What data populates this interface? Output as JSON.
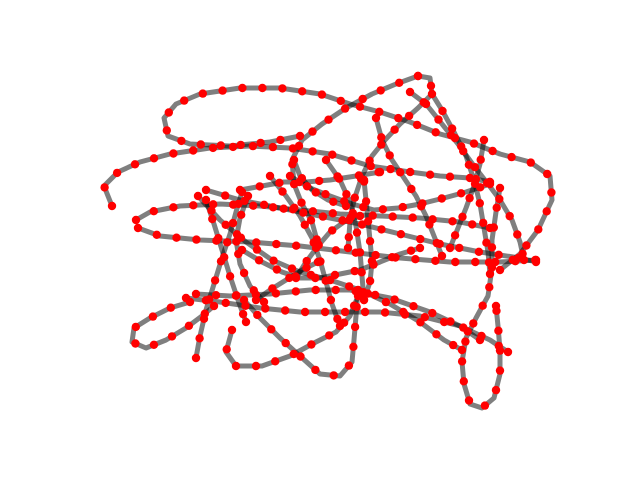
{
  "figure": {
    "description_free": true,
    "edge_color": "#000000",
    "node_color": "#ff0000",
    "background": "#ffffff"
  }
}
